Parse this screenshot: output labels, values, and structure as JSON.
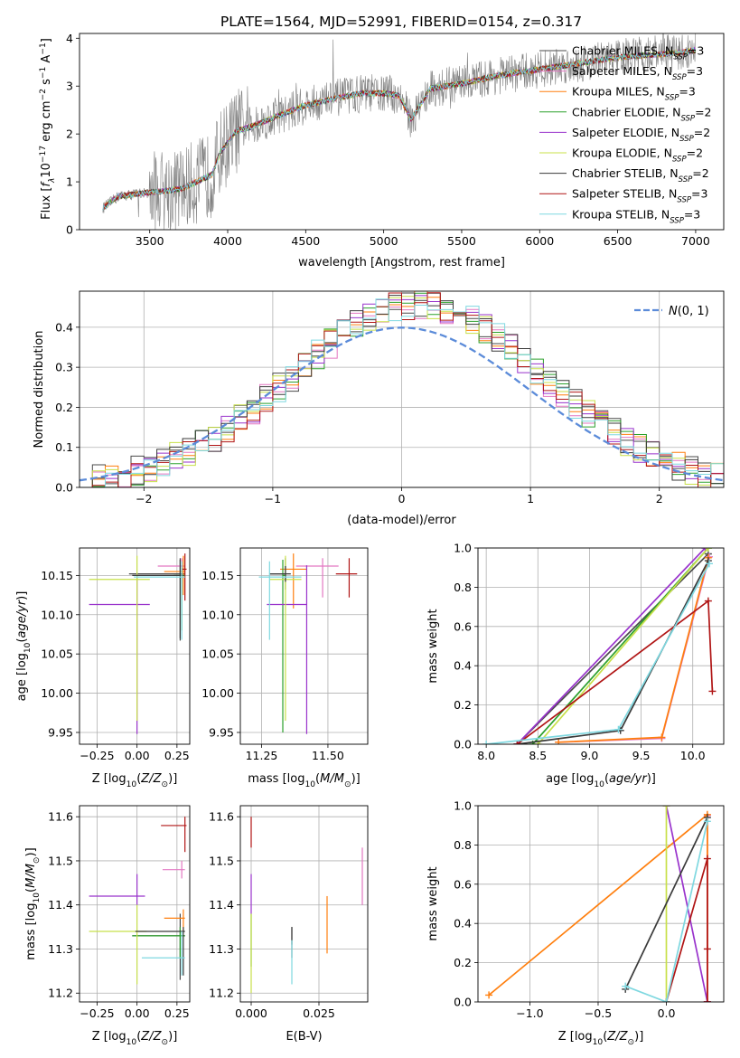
{
  "title": "PLATE=1564, MJD=52991, FIBERID=0154, z=0.317",
  "colors": {
    "Chabrier MILES": "#4a4a4a",
    "Salpeter MILES": "#e377c2",
    "Kroupa MILES": "#ff7f0e",
    "Chabrier ELODIE": "#2ca02c",
    "Salpeter ELODIE": "#9933cc",
    "Kroupa ELODIE": "#c8e04a",
    "Chabrier STELIB": "#3a3a3a",
    "Salpeter STELIB": "#b01515",
    "Kroupa STELIB": "#7fd8e0",
    "gaussian": "#5b8bd9",
    "data": "#808080"
  },
  "chart_data": [
    {
      "id": "spectrum",
      "type": "line",
      "title": "PLATE=1564, MJD=52991, FIBERID=0154, z=0.317",
      "xlabel": "wavelength [Angstrom, rest frame]",
      "ylabel": "Flux [f_λ 10^{-17} erg cm^{-2} s^{-1} A^{-1}]",
      "xlim": [
        3050,
        7180
      ],
      "ylim": [
        0,
        4.1
      ],
      "xticks": [
        3500,
        4000,
        4500,
        5000,
        5500,
        6000,
        6500,
        7000
      ],
      "yticks": [
        0,
        1,
        2,
        3,
        4
      ],
      "grid": false,
      "legend_position": "top-right",
      "legend": [
        {
          "model": "Chabrier MILES",
          "nssp": "3"
        },
        {
          "model": "Salpeter MILES",
          "nssp": "3"
        },
        {
          "model": "Kroupa MILES",
          "nssp": "3"
        },
        {
          "model": "Chabrier ELODIE",
          "nssp": "2"
        },
        {
          "model": "Salpeter ELODIE",
          "nssp": "2"
        },
        {
          "model": "Kroupa ELODIE",
          "nssp": "2"
        },
        {
          "model": "Chabrier STELIB",
          "nssp": "2"
        },
        {
          "model": "Salpeter STELIB",
          "nssp": "3"
        },
        {
          "model": "Kroupa STELIB",
          "nssp": "3"
        }
      ],
      "continuum": {
        "wavelength": [
          3200,
          3300,
          3500,
          3700,
          3900,
          3950,
          4050,
          4150,
          4300,
          4500,
          4700,
          4860,
          5000,
          5100,
          5175,
          5300,
          5500,
          5700,
          5900,
          6100,
          6300,
          6500,
          6700,
          6900,
          7000
        ],
        "flux": [
          0.45,
          0.7,
          0.78,
          0.85,
          1.15,
          1.6,
          2.05,
          2.15,
          2.35,
          2.6,
          2.75,
          2.85,
          2.85,
          2.8,
          2.3,
          2.95,
          3.05,
          3.2,
          3.3,
          3.4,
          3.5,
          3.6,
          3.65,
          3.7,
          3.75
        ]
      }
    },
    {
      "id": "residuals",
      "type": "bar",
      "xlabel": "(data-model)/error",
      "ylabel": "Normed distribution",
      "xlim": [
        -2.5,
        2.5
      ],
      "ylim": [
        0,
        0.49
      ],
      "xticks": [
        -2,
        -1,
        0,
        1,
        2
      ],
      "yticks": [
        0.0,
        0.1,
        0.2,
        0.3,
        0.4
      ],
      "grid": true,
      "legend_position": "top-right",
      "legend_label": "N(0,1)",
      "bin_width": 0.1,
      "gaussian": {
        "mu": 0,
        "sigma": 1
      }
    },
    {
      "id": "age-vs-Z",
      "type": "scatter",
      "xlabel": "Z [log10(Z/Z⊙)]",
      "ylabel": "age [log10(age/yr)]",
      "xlim": [
        -0.36,
        0.33
      ],
      "ylim": [
        9.935,
        10.185
      ],
      "xticks": [
        -0.25,
        0.0,
        0.25
      ],
      "yticks": [
        9.95,
        10.0,
        10.05,
        10.1,
        10.15
      ],
      "grid": true,
      "points": [
        {
          "model": "Chabrier MILES",
          "x": 0.27,
          "y": 10.152,
          "xerr": [
            0.32,
            0.03
          ],
          "yerr": [
            0.085,
            0.02
          ]
        },
        {
          "model": "Salpeter MILES",
          "x": 0.28,
          "y": 10.162,
          "xerr": [
            0.15,
            0.02
          ],
          "yerr": [
            0.01,
            0.01
          ]
        },
        {
          "model": "Kroupa MILES",
          "x": 0.29,
          "y": 10.155,
          "xerr": [
            0.12,
            0.01
          ],
          "yerr": [
            0.03,
            0.02
          ]
        },
        {
          "model": "Chabrier ELODIE",
          "x": 0.28,
          "y": 10.15,
          "xerr": [
            0.05,
            0.02
          ],
          "yerr": [
            0.07,
            0.01
          ]
        },
        {
          "model": "Salpeter ELODIE",
          "x": 0.0,
          "y": 10.113,
          "xerr": [
            0.3,
            0.08
          ],
          "yerr": [
            0.165,
            0.04
          ]
        },
        {
          "model": "Kroupa ELODIE",
          "x": 0.0,
          "y": 10.145,
          "xerr": [
            0.3,
            0.08
          ],
          "yerr": [
            0.18,
            0.03
          ]
        },
        {
          "model": "Chabrier STELIB",
          "x": 0.27,
          "y": 10.15,
          "xerr": [
            0.3,
            0.02
          ],
          "yerr": [
            0.08,
            0.02
          ]
        },
        {
          "model": "Salpeter STELIB",
          "x": 0.3,
          "y": 10.158,
          "xerr": [
            0.02,
            0.01
          ],
          "yerr": [
            0.04,
            0.02
          ]
        },
        {
          "model": "Kroupa STELIB",
          "x": 0.28,
          "y": 10.148,
          "xerr": [
            0.3,
            0.02
          ],
          "yerr": [
            0.08,
            0.02
          ]
        }
      ]
    },
    {
      "id": "age-vs-mass",
      "type": "scatter",
      "xlabel": "mass [log10(M/M⊙)]",
      "ylabel": "",
      "xlim": [
        11.17,
        11.65
      ],
      "ylim": [
        9.935,
        10.185
      ],
      "xticks": [
        11.25,
        11.5
      ],
      "yticks": [
        9.95,
        10.0,
        10.05,
        10.1,
        10.15
      ],
      "grid": true,
      "points": [
        {
          "model": "Chabrier MILES",
          "x": 11.34,
          "y": 10.152,
          "xerr": [
            0.06,
            0.0
          ],
          "yerr": [
            0.02,
            0.02
          ]
        },
        {
          "model": "Salpeter MILES",
          "x": 11.48,
          "y": 10.162,
          "xerr": [
            0.1,
            0.06
          ],
          "yerr": [
            0.04,
            0.01
          ]
        },
        {
          "model": "Kroupa MILES",
          "x": 11.37,
          "y": 10.158,
          "xerr": [
            0.05,
            0.05
          ],
          "yerr": [
            0.05,
            0.02
          ]
        },
        {
          "model": "Chabrier ELODIE",
          "x": 11.33,
          "y": 10.15,
          "xerr": [
            0.0,
            0.01
          ],
          "yerr": [
            0.2,
            0.02
          ]
        },
        {
          "model": "Salpeter ELODIE",
          "x": 11.42,
          "y": 10.113,
          "xerr": [
            0.15,
            0.0
          ],
          "yerr": [
            0.165,
            0.05
          ]
        },
        {
          "model": "Kroupa ELODIE",
          "x": 11.34,
          "y": 10.145,
          "xerr": [
            0.06,
            0.06
          ],
          "yerr": [
            0.18,
            0.03
          ]
        },
        {
          "model": "Chabrier STELIB",
          "x": 11.34,
          "y": 10.152,
          "xerr": [
            0.06,
            0.02
          ],
          "yerr": [
            0.01,
            0.01
          ]
        },
        {
          "model": "Salpeter STELIB",
          "x": 11.58,
          "y": 10.152,
          "xerr": [
            0.05,
            0.03
          ],
          "yerr": [
            0.03,
            0.02
          ]
        },
        {
          "model": "Kroupa STELIB",
          "x": 11.28,
          "y": 10.148,
          "xerr": [
            0.04,
            0.12
          ],
          "yerr": [
            0.08,
            0.02
          ]
        }
      ]
    },
    {
      "id": "weight-vs-age",
      "type": "line",
      "xlabel": "age [log10(age/yr)]",
      "ylabel": "mass weight",
      "xlim": [
        7.92,
        10.3
      ],
      "ylim": [
        0,
        1
      ],
      "xticks": [
        8.0,
        8.5,
        9.0,
        9.5,
        10.0
      ],
      "yticks": [
        0.0,
        0.2,
        0.4,
        0.6,
        0.8,
        1.0
      ],
      "grid": true,
      "series": [
        {
          "model": "Chabrier MILES",
          "x": [
            10.15,
            8.3
          ],
          "y": [
            0.97,
            0.0
          ]
        },
        {
          "model": "Salpeter MILES",
          "x": [
            10.16,
            9.7,
            8.7
          ],
          "y": [
            0.955,
            0.03,
            0.01
          ]
        },
        {
          "model": "Kroupa MILES",
          "x": [
            10.15,
            9.7,
            8.7
          ],
          "y": [
            0.95,
            0.035,
            0.01
          ]
        },
        {
          "model": "Chabrier ELODIE",
          "x": [
            10.15,
            8.45
          ],
          "y": [
            1.0,
            0.0
          ]
        },
        {
          "model": "Salpeter ELODIE",
          "x": [
            10.12,
            8.3
          ],
          "y": [
            1.0,
            0.0
          ]
        },
        {
          "model": "Kroupa ELODIE",
          "x": [
            10.15,
            8.5
          ],
          "y": [
            1.0,
            0.0
          ]
        },
        {
          "model": "Chabrier STELIB",
          "x": [
            10.15,
            9.3,
            8.3
          ],
          "y": [
            0.935,
            0.07,
            0.0
          ]
        },
        {
          "model": "Salpeter STELIB",
          "x": [
            10.19,
            10.15,
            8.3
          ],
          "y": [
            0.27,
            0.73,
            0.0
          ]
        },
        {
          "model": "Kroupa STELIB",
          "x": [
            10.16,
            9.28,
            8.0
          ],
          "y": [
            0.92,
            0.075,
            0.0
          ]
        }
      ]
    },
    {
      "id": "mass-vs-Z",
      "type": "scatter",
      "xlabel": "Z [log10(Z/Z⊙)]",
      "ylabel": "mass [log10(M/M⊙)]",
      "xlim": [
        -0.36,
        0.33
      ],
      "ylim": [
        11.18,
        11.625
      ],
      "xticks": [
        -0.25,
        0.0,
        0.25
      ],
      "yticks": [
        11.2,
        11.3,
        11.4,
        11.5,
        11.6
      ],
      "grid": true,
      "points": [
        {
          "model": "Chabrier MILES",
          "x": 0.27,
          "y": 11.33,
          "xerr": [
            0.3,
            0.03
          ],
          "yerr": [
            0.1,
            0.05
          ]
        },
        {
          "model": "Salpeter MILES",
          "x": 0.28,
          "y": 11.48,
          "xerr": [
            0.12,
            0.02
          ],
          "yerr": [
            0.02,
            0.02
          ]
        },
        {
          "model": "Kroupa MILES",
          "x": 0.29,
          "y": 11.37,
          "xerr": [
            0.12,
            0.01
          ],
          "yerr": [
            0.03,
            0.02
          ]
        },
        {
          "model": "Chabrier ELODIE",
          "x": 0.27,
          "y": 11.33,
          "xerr": [
            0.3,
            0.03
          ],
          "yerr": [
            0.05,
            0.02
          ]
        },
        {
          "model": "Salpeter ELODIE",
          "x": 0.0,
          "y": 11.42,
          "xerr": [
            0.3,
            0.05
          ],
          "yerr": [
            0.02,
            0.05
          ]
        },
        {
          "model": "Kroupa ELODIE",
          "x": 0.0,
          "y": 11.34,
          "xerr": [
            0.3,
            0.06
          ],
          "yerr": [
            0.12,
            0.06
          ]
        },
        {
          "model": "Chabrier STELIB",
          "x": 0.29,
          "y": 11.34,
          "xerr": [
            0.3,
            0.01
          ],
          "yerr": [
            0.1,
            0.01
          ]
        },
        {
          "model": "Salpeter STELIB",
          "x": 0.3,
          "y": 11.58,
          "xerr": [
            0.15,
            0.01
          ],
          "yerr": [
            0.06,
            0.02
          ]
        },
        {
          "model": "Kroupa STELIB",
          "x": 0.28,
          "y": 11.28,
          "xerr": [
            0.25,
            0.02
          ],
          "yerr": [
            0.04,
            0.06
          ]
        }
      ]
    },
    {
      "id": "mass-vs-ebv",
      "type": "scatter",
      "xlabel": "E(B-V)",
      "ylabel": "",
      "xlim": [
        -0.004,
        0.043
      ],
      "ylim": [
        11.18,
        11.625
      ],
      "xticks": [
        0.0,
        0.025
      ],
      "yticks": [
        11.2,
        11.3,
        11.4,
        11.5,
        11.6
      ],
      "grid": true,
      "points": [
        {
          "model": "Chabrier MILES",
          "x": 0.015,
          "y": 11.32,
          "yerr": [
            0.01,
            0.03
          ]
        },
        {
          "model": "Salpeter MILES",
          "x": 0.041,
          "y": 11.47,
          "yerr": [
            0.07,
            0.06
          ]
        },
        {
          "model": "Kroupa MILES",
          "x": 0.028,
          "y": 11.37,
          "yerr": [
            0.08,
            0.05
          ]
        },
        {
          "model": "Chabrier ELODIE",
          "x": 0.0,
          "y": 11.32,
          "yerr": [
            0.06,
            0.06
          ]
        },
        {
          "model": "Salpeter ELODIE",
          "x": 0.0,
          "y": 11.42,
          "yerr": [
            0.04,
            0.05
          ]
        },
        {
          "model": "Kroupa ELODIE",
          "x": 0.0,
          "y": 11.33,
          "yerr": [
            0.13,
            0.05
          ]
        },
        {
          "model": "Chabrier STELIB",
          "x": 0.015,
          "y": 11.3,
          "yerr": [
            0.02,
            0.05
          ]
        },
        {
          "model": "Salpeter STELIB",
          "x": 0.0,
          "y": 11.57,
          "yerr": [
            0.04,
            0.03
          ]
        },
        {
          "model": "Kroupa STELIB",
          "x": 0.015,
          "y": 11.27,
          "yerr": [
            0.05,
            0.05
          ]
        }
      ]
    },
    {
      "id": "weight-vs-Z",
      "type": "line",
      "xlabel": "Z [log10(Z/Z⊙)]",
      "ylabel": "mass weight",
      "xlim": [
        -1.38,
        0.42
      ],
      "ylim": [
        0,
        1
      ],
      "xticks": [
        -1.0,
        -0.5,
        0.0
      ],
      "yticks": [
        0.0,
        0.2,
        0.4,
        0.6,
        0.8,
        1.0
      ],
      "grid": true,
      "series": [
        {
          "model": "Salpeter MILES",
          "x": [
            0.3,
            0.3
          ],
          "y": [
            0.0,
            0.95
          ]
        },
        {
          "model": "Kroupa MILES",
          "x": [
            -1.3,
            0.3,
            0.3
          ],
          "y": [
            0.035,
            0.955,
            0.0
          ]
        },
        {
          "model": "Salpeter ELODIE",
          "x": [
            0.0,
            0.3
          ],
          "y": [
            1.0,
            0.0
          ]
        },
        {
          "model": "Kroupa ELODIE",
          "x": [
            0.0,
            0.0
          ],
          "y": [
            0.0,
            1.0
          ]
        },
        {
          "model": "Chabrier STELIB",
          "x": [
            -0.3,
            0.3
          ],
          "y": [
            0.065,
            0.94
          ]
        },
        {
          "model": "Salpeter STELIB",
          "x": [
            0.3,
            0.3,
            0.3,
            0.0
          ],
          "y": [
            0.0,
            0.27,
            0.73,
            0.0
          ]
        },
        {
          "model": "Kroupa STELIB",
          "x": [
            -0.3,
            0.0,
            0.3
          ],
          "y": [
            0.08,
            0.0,
            0.92
          ]
        }
      ]
    }
  ]
}
